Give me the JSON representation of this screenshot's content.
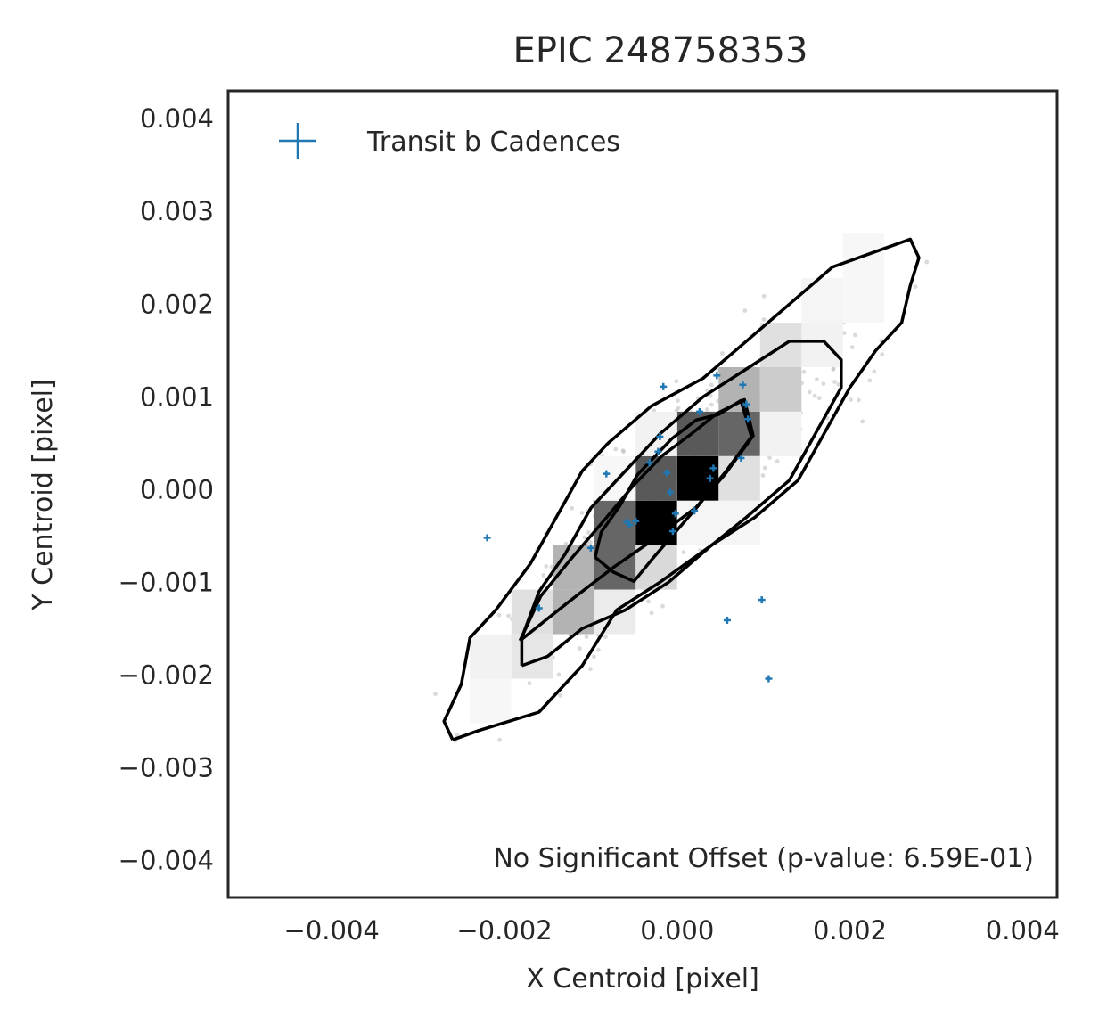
{
  "chart_data": {
    "type": "scatter",
    "title": "EPIC 248758353",
    "xlabel": "X Centroid [pixel]",
    "ylabel": "Y Centroid [pixel]",
    "xlim": [
      -0.0052,
      0.0044
    ],
    "ylim": [
      -0.0044,
      0.0043
    ],
    "x_ticks": [
      {
        "value": -0.004,
        "label": "−0.004"
      },
      {
        "value": -0.002,
        "label": "−0.002"
      },
      {
        "value": 0.0,
        "label": "0.000"
      },
      {
        "value": 0.002,
        "label": "0.002"
      },
      {
        "value": 0.004,
        "label": "0.004"
      }
    ],
    "y_ticks": [
      {
        "value": 0.004,
        "label": "0.004"
      },
      {
        "value": 0.003,
        "label": "0.003"
      },
      {
        "value": 0.002,
        "label": "0.002"
      },
      {
        "value": 0.001,
        "label": "0.001"
      },
      {
        "value": 0.0,
        "label": "0.000"
      },
      {
        "value": -0.001,
        "label": "−0.001"
      },
      {
        "value": -0.002,
        "label": "−0.002"
      },
      {
        "value": -0.003,
        "label": "−0.003"
      },
      {
        "value": -0.004,
        "label": "−0.004"
      }
    ],
    "grid": false,
    "legend": {
      "position": "top-left",
      "entries": [
        "Transit b Cadences"
      ]
    },
    "annotation": "No Significant Offset (p-value: 6.59E-01)",
    "colors": {
      "transit": "#1f77b4",
      "background_points": "#bbbbbb",
      "contour": "#000000",
      "frame": "#262626"
    },
    "series": [
      {
        "name": "Transit b Cadences",
        "marker": "+",
        "points": [
          [
            -0.0022,
            -0.00052
          ],
          [
            -0.0016,
            -0.00128
          ],
          [
            -0.001,
            -0.00063
          ],
          [
            -0.00082,
            0.00017
          ],
          [
            -0.00058,
            -0.00035
          ],
          [
            -0.00055,
            -0.00038
          ],
          [
            -0.00048,
            -0.00034
          ],
          [
            -0.00032,
            0.00029
          ],
          [
            -0.00022,
            0.00041
          ],
          [
            -0.0002,
            0.00057
          ],
          [
            -0.00016,
            0.00111
          ],
          [
            -0.00012,
            0.00018
          ],
          [
            -8e-05,
            -3e-05
          ],
          [
            -5e-05,
            -0.00045
          ],
          [
            -2e-05,
            -0.00026
          ],
          [
            0.0002,
            -0.00023
          ],
          [
            0.00026,
            0.00084
          ],
          [
            0.00038,
            0.00012
          ],
          [
            0.00042,
            0.00023
          ],
          [
            0.00046,
            0.00123
          ],
          [
            0.00058,
            -0.00141
          ],
          [
            0.00074,
            0.00034
          ],
          [
            0.00076,
            0.00113
          ],
          [
            0.0008,
            0.00092
          ],
          [
            0.00082,
            0.00076
          ],
          [
            0.00098,
            -0.00119
          ],
          [
            0.00106,
            -0.00204
          ]
        ]
      }
    ],
    "histogram_2d": {
      "bin_size": 0.00048,
      "cells": [
        {
          "x": 0.00024,
          "y": 0.00012,
          "shade": 1.0
        },
        {
          "x": -0.00024,
          "y": -0.00036,
          "shade": 1.0
        },
        {
          "x": -0.00024,
          "y": 0.00012,
          "shade": 0.65
        },
        {
          "x": 0.00024,
          "y": 0.0006,
          "shade": 0.65
        },
        {
          "x": 0.00072,
          "y": 0.0006,
          "shade": 0.6
        },
        {
          "x": -0.00072,
          "y": -0.00036,
          "shade": 0.6
        },
        {
          "x": -0.00072,
          "y": -0.00084,
          "shade": 0.6
        },
        {
          "x": 0.00072,
          "y": 0.00012,
          "shade": 0.12
        },
        {
          "x": -0.00024,
          "y": -0.00084,
          "shade": 0.15
        },
        {
          "x": -0.0012,
          "y": -0.00084,
          "shade": 0.3
        },
        {
          "x": -0.0012,
          "y": -0.00132,
          "shade": 0.3
        },
        {
          "x": -0.00168,
          "y": -0.00132,
          "shade": 0.12
        },
        {
          "x": -0.00168,
          "y": -0.0018,
          "shade": 0.1
        },
        {
          "x": 0.00072,
          "y": 0.00108,
          "shade": 0.3
        },
        {
          "x": 0.0012,
          "y": 0.00108,
          "shade": 0.2
        },
        {
          "x": 0.0012,
          "y": 0.00156,
          "shade": 0.12
        },
        {
          "x": -0.00072,
          "y": -0.00132,
          "shade": 0.08
        },
        {
          "x": -0.00024,
          "y": 0.0006,
          "shade": 0.05
        },
        {
          "x": 0.00072,
          "y": -0.00036,
          "shade": 0.04
        },
        {
          "x": 0.0012,
          "y": 0.0006,
          "shade": 0.05
        },
        {
          "x": 0.00168,
          "y": 0.00156,
          "shade": 0.05
        },
        {
          "x": 0.00168,
          "y": 0.00204,
          "shade": 0.04
        },
        {
          "x": 0.00216,
          "y": 0.00204,
          "shade": 0.03
        },
        {
          "x": 0.00216,
          "y": 0.00252,
          "shade": 0.03
        },
        {
          "x": -0.00216,
          "y": -0.0018,
          "shade": 0.05
        },
        {
          "x": -0.00216,
          "y": -0.00228,
          "shade": 0.03
        },
        {
          "x": 0.00024,
          "y": -0.00036,
          "shade": 0.04
        },
        {
          "x": -0.00072,
          "y": 0.00012,
          "shade": 0.03
        }
      ]
    },
    "contours": [
      {
        "level": "inner",
        "points": [
          [
            -0.00095,
            -0.00073
          ],
          [
            -0.00074,
            -0.00089
          ],
          [
            -0.0005,
            -0.00099
          ],
          [
            -0.00028,
            -0.00074
          ],
          [
            0.00022,
            -0.0002
          ],
          [
            0.00056,
            0.00019
          ],
          [
            0.00086,
            0.00057
          ],
          [
            0.00074,
            0.00096
          ],
          [
            0.00048,
            0.00081
          ],
          [
            0.00022,
            0.00075
          ],
          [
            -6e-05,
            0.00055
          ],
          [
            -0.00046,
            0.00016
          ],
          [
            -0.00066,
            -0.00017
          ],
          [
            -0.00088,
            -0.00046
          ],
          [
            -0.00095,
            -0.00073
          ]
        ]
      },
      {
        "level": "middle",
        "points": [
          [
            -0.00182,
            -0.00163
          ],
          [
            -0.00124,
            -0.0012
          ],
          [
            -0.00074,
            -0.00084
          ],
          [
            -0.00026,
            -0.00053
          ],
          [
            0.00022,
            -0.00019
          ],
          [
            0.00055,
            0.00016
          ],
          [
            0.00088,
            0.00058
          ],
          [
            0.00078,
            0.00097
          ],
          [
            0.00046,
            0.00082
          ],
          [
            0.00015,
            0.00059
          ],
          [
            -0.00018,
            0.00036
          ],
          [
            -0.00052,
            3e-05
          ],
          [
            -0.00088,
            -0.00037
          ],
          [
            -0.00124,
            -0.00076
          ],
          [
            -0.00158,
            -0.00115
          ],
          [
            -0.00182,
            -0.00163
          ]
        ]
      },
      {
        "level": "outer-a",
        "points": [
          [
            -0.0026,
            -0.0027
          ],
          [
            -0.0023,
            -0.0026
          ],
          [
            -0.0016,
            -0.0024
          ],
          [
            -0.0011,
            -0.0019
          ],
          [
            -0.0007,
            -0.0013
          ],
          [
            -0.0002,
            -0.001
          ],
          [
            0.0004,
            -0.0006
          ],
          [
            0.0009,
            -0.0003
          ],
          [
            0.0014,
            0.0001
          ],
          [
            0.0017,
            0.0006
          ],
          [
            0.002,
            0.0011
          ],
          [
            0.0023,
            0.0015
          ],
          [
            0.0026,
            0.0018
          ],
          [
            0.0027,
            0.0022
          ],
          [
            0.0028,
            0.0025
          ],
          [
            0.0027,
            0.0027
          ],
          [
            0.0024,
            0.0026
          ],
          [
            0.0018,
            0.0024
          ],
          [
            0.0013,
            0.002
          ],
          [
            0.0008,
            0.0016
          ],
          [
            0.0003,
            0.0012
          ],
          [
            -0.0003,
            0.0009
          ],
          [
            -0.0008,
            0.0005
          ],
          [
            -0.0011,
            0.0002
          ],
          [
            -0.0014,
            -0.0003
          ],
          [
            -0.0017,
            -0.0008
          ],
          [
            -0.0021,
            -0.0013
          ],
          [
            -0.0024,
            -0.0016
          ],
          [
            -0.0025,
            -0.0021
          ],
          [
            -0.0027,
            -0.0025
          ],
          [
            -0.0026,
            -0.0027
          ]
        ]
      },
      {
        "level": "outer-b",
        "points": [
          [
            -0.0018,
            -0.0019
          ],
          [
            -0.0015,
            -0.0018
          ],
          [
            -0.0011,
            -0.0015
          ],
          [
            -0.0006,
            -0.0013
          ],
          [
            -0.0001,
            -0.001
          ],
          [
            0.0004,
            -0.0006
          ],
          [
            0.0008,
            -0.0003
          ],
          [
            0.0013,
            0.0001
          ],
          [
            0.0016,
            0.0006
          ],
          [
            0.0019,
            0.0011
          ],
          [
            0.0019,
            0.0014
          ],
          [
            0.0017,
            0.0016
          ],
          [
            0.0013,
            0.0016
          ],
          [
            0.0008,
            0.0013
          ],
          [
            0.0003,
            0.001
          ],
          [
            -0.0002,
            0.0006
          ],
          [
            -0.0006,
            0.0002
          ],
          [
            -0.001,
            -0.0002
          ],
          [
            -0.0013,
            -0.0007
          ],
          [
            -0.0016,
            -0.0011
          ],
          [
            -0.0018,
            -0.0016
          ],
          [
            -0.0018,
            -0.0019
          ]
        ]
      }
    ]
  }
}
